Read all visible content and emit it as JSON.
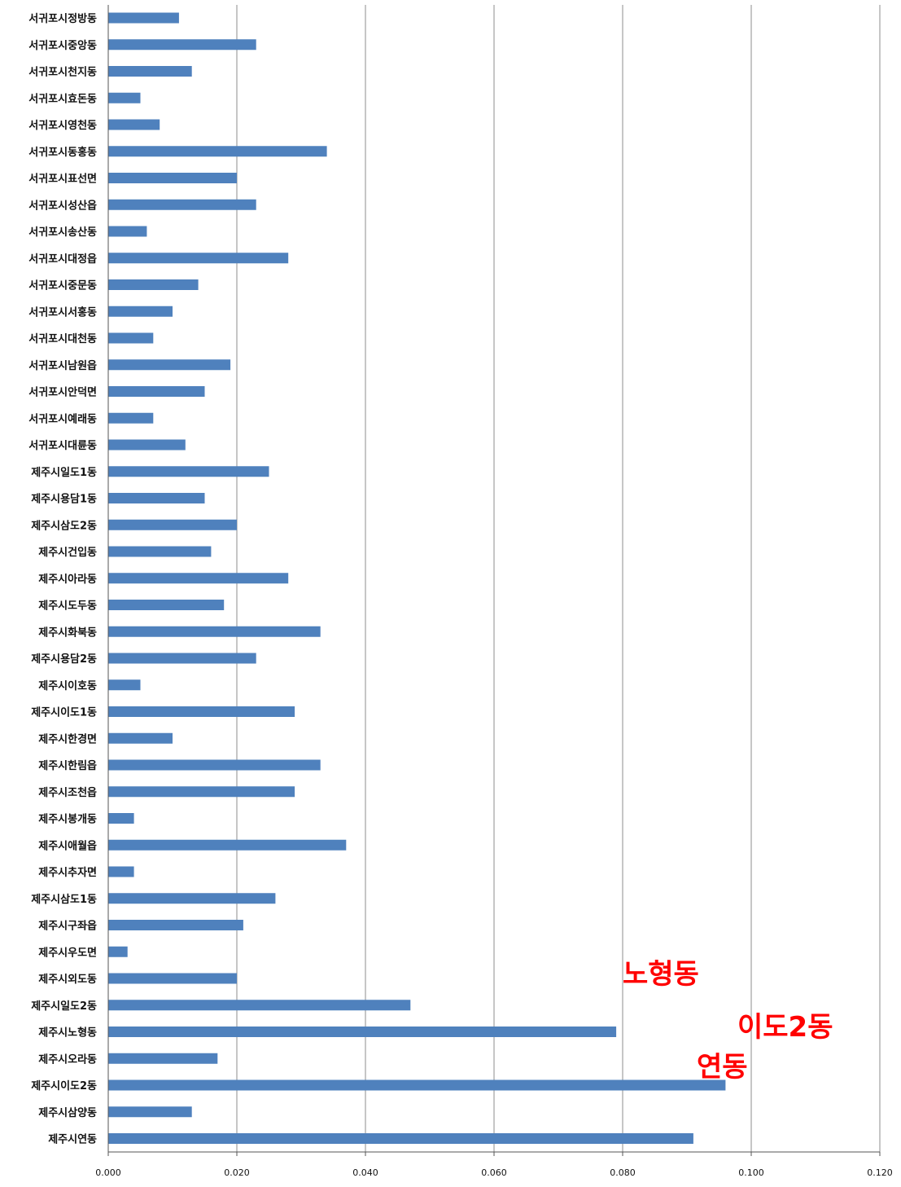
{
  "chart_data": {
    "type": "bar",
    "orientation": "horizontal",
    "categories": [
      "서귀포시정방동",
      "서귀포시중앙동",
      "서귀포시천지동",
      "서귀포시효돈동",
      "서귀포시영천동",
      "서귀포시동홍동",
      "서귀포시표선면",
      "서귀포시성산읍",
      "서귀포시송산동",
      "서귀포시대정읍",
      "서귀포시중문동",
      "서귀포시서홍동",
      "서귀포시대천동",
      "서귀포시남원읍",
      "서귀포시안덕면",
      "서귀포시예래동",
      "서귀포시대륜동",
      "제주시일도1동",
      "제주시용담1동",
      "제주시삼도2동",
      "제주시건입동",
      "제주시아라동",
      "제주시도두동",
      "제주시화북동",
      "제주시용담2동",
      "제주시이호동",
      "제주시이도1동",
      "제주시한경면",
      "제주시한림읍",
      "제주시조천읍",
      "제주시봉개동",
      "제주시애월읍",
      "제주시추자면",
      "제주시삼도1동",
      "제주시구좌읍",
      "제주시우도면",
      "제주시외도동",
      "제주시일도2동",
      "제주시노형동",
      "제주시오라동",
      "제주시이도2동",
      "제주시삼양동",
      "제주시연동"
    ],
    "values": [
      0.011,
      0.023,
      0.013,
      0.005,
      0.008,
      0.034,
      0.02,
      0.023,
      0.006,
      0.028,
      0.014,
      0.01,
      0.007,
      0.019,
      0.015,
      0.007,
      0.012,
      0.025,
      0.015,
      0.02,
      0.016,
      0.028,
      0.018,
      0.033,
      0.023,
      0.005,
      0.029,
      0.01,
      0.033,
      0.029,
      0.004,
      0.037,
      0.004,
      0.026,
      0.021,
      0.003,
      0.02,
      0.047,
      0.079,
      0.017,
      0.096,
      0.013,
      0.091
    ],
    "xticks": [
      "0.000",
      "0.020",
      "0.040",
      "0.060",
      "0.080",
      "0.100",
      "0.120"
    ],
    "xlim": [
      0,
      0.12
    ],
    "grid": true,
    "bar_color": "#4f81bd",
    "annotations": [
      {
        "text": "노형동",
        "near_category": "제주시노형동",
        "color": "#ff0000"
      },
      {
        "text": "이도2동",
        "near_category": "제주시이도2동",
        "color": "#ff0000"
      },
      {
        "text": "연동",
        "near_category": "제주시연동",
        "color": "#ff0000"
      }
    ]
  }
}
